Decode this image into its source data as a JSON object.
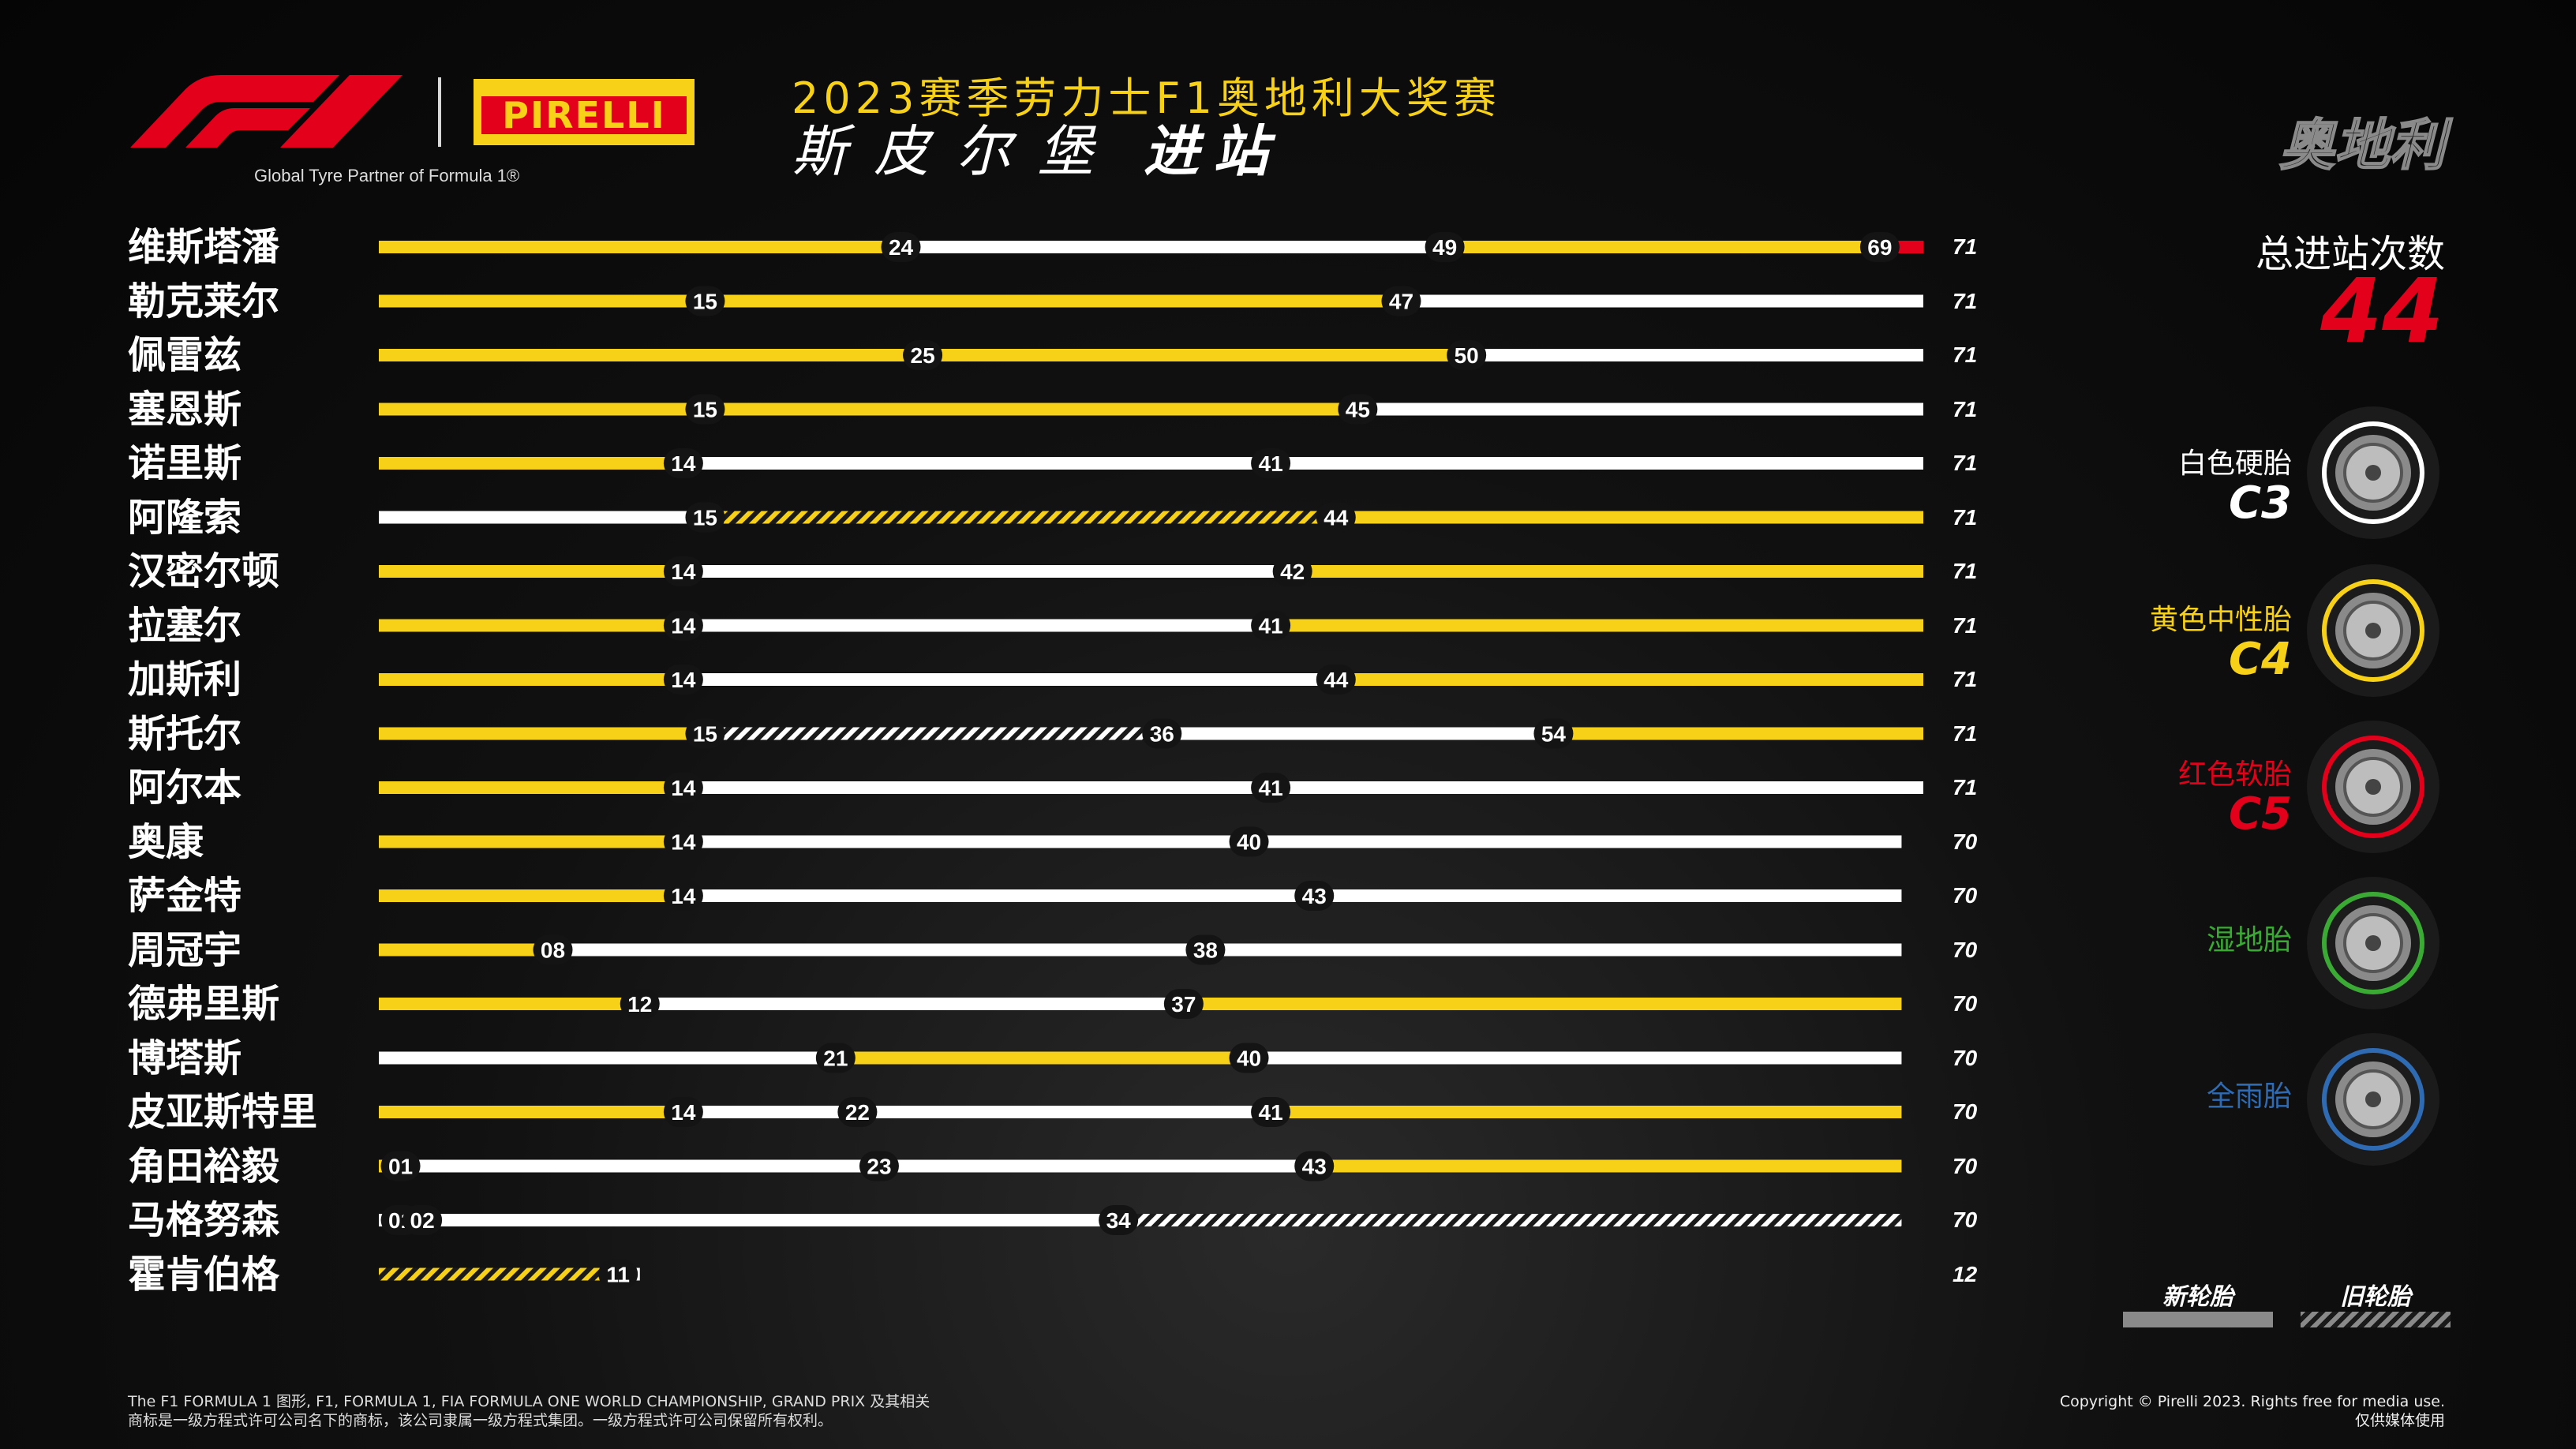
{
  "header": {
    "title_line1": "2023赛季劳力士F1奥地利大奖赛",
    "title_line2_a": "斯皮尔堡",
    "title_line2_b": "进站",
    "country": "奥地利",
    "partner_text": "Global Tyre Partner of Formula 1®",
    "pirelli_logo_text": "PIRELLI"
  },
  "summary": {
    "label": "总进站次数",
    "value": "44"
  },
  "legend": {
    "compounds": [
      {
        "name": "白色硬胎",
        "code": "C3",
        "color": "#ffffff"
      },
      {
        "name": "黄色中性胎",
        "code": "C4",
        "color": "#f7d117"
      },
      {
        "name": "红色软胎",
        "code": "C5",
        "color": "#e2001a"
      },
      {
        "name": "湿地胎",
        "code": "",
        "color": "#3aaa35"
      },
      {
        "name": "全雨胎",
        "code": "",
        "color": "#2f6bb3"
      }
    ],
    "new_label": "新轮胎",
    "used_label": "旧轮胎"
  },
  "footer": {
    "left_line1": "The F1 FORMULA 1 图形, F1, FORMULA 1, FIA FORMULA ONE WORLD CHAMPIONSHIP, GRAND PRIX 及其相关",
    "left_line2": "商标是一级方程式许可公司名下的商标，该公司隶属一级方程式集团。一级方程式许可公司保留所有权利。",
    "right_line1": "Copyright © Pirelli 2023. Rights free for media use.",
    "right_line2": "仅供媒体使用"
  },
  "chart_data": {
    "type": "bar",
    "x_range": [
      0,
      71
    ],
    "colors": {
      "hard": "#ffffff",
      "medium": "#f7d117",
      "soft": "#e2001a"
    },
    "drivers": [
      {
        "name": "维斯塔潘",
        "laps": 71,
        "stints": [
          {
            "tyre": "medium",
            "start": 0,
            "end": 24,
            "used": false
          },
          {
            "tyre": "hard",
            "start": 24,
            "end": 49,
            "used": false
          },
          {
            "tyre": "medium",
            "start": 49,
            "end": 69,
            "used": false
          },
          {
            "tyre": "soft",
            "start": 69,
            "end": 71,
            "used": false
          }
        ],
        "stops": [
          "24",
          "49",
          "69"
        ]
      },
      {
        "name": "勒克莱尔",
        "laps": 71,
        "stints": [
          {
            "tyre": "medium",
            "start": 0,
            "end": 15,
            "used": false
          },
          {
            "tyre": "medium",
            "start": 15,
            "end": 47,
            "used": false
          },
          {
            "tyre": "hard",
            "start": 47,
            "end": 71,
            "used": false
          }
        ],
        "stops": [
          "15",
          "47"
        ]
      },
      {
        "name": "佩雷兹",
        "laps": 71,
        "stints": [
          {
            "tyre": "medium",
            "start": 0,
            "end": 25,
            "used": false
          },
          {
            "tyre": "medium",
            "start": 25,
            "end": 50,
            "used": false
          },
          {
            "tyre": "hard",
            "start": 50,
            "end": 71,
            "used": false
          }
        ],
        "stops": [
          "25",
          "50"
        ]
      },
      {
        "name": "塞恩斯",
        "laps": 71,
        "stints": [
          {
            "tyre": "medium",
            "start": 0,
            "end": 15,
            "used": false
          },
          {
            "tyre": "medium",
            "start": 15,
            "end": 45,
            "used": false
          },
          {
            "tyre": "hard",
            "start": 45,
            "end": 71,
            "used": false
          }
        ],
        "stops": [
          "15",
          "45"
        ]
      },
      {
        "name": "诺里斯",
        "laps": 71,
        "stints": [
          {
            "tyre": "medium",
            "start": 0,
            "end": 14,
            "used": false
          },
          {
            "tyre": "hard",
            "start": 14,
            "end": 41,
            "used": false
          },
          {
            "tyre": "hard",
            "start": 41,
            "end": 71,
            "used": false
          }
        ],
        "stops": [
          "14",
          "41"
        ]
      },
      {
        "name": "阿隆索",
        "laps": 71,
        "stints": [
          {
            "tyre": "hard",
            "start": 0,
            "end": 15,
            "used": false
          },
          {
            "tyre": "medium",
            "start": 15,
            "end": 44,
            "used": true
          },
          {
            "tyre": "medium",
            "start": 44,
            "end": 71,
            "used": false
          }
        ],
        "stops": [
          "15",
          "44"
        ]
      },
      {
        "name": "汉密尔顿",
        "laps": 71,
        "stints": [
          {
            "tyre": "medium",
            "start": 0,
            "end": 14,
            "used": false
          },
          {
            "tyre": "hard",
            "start": 14,
            "end": 42,
            "used": false
          },
          {
            "tyre": "medium",
            "start": 42,
            "end": 71,
            "used": false
          }
        ],
        "stops": [
          "14",
          "42"
        ]
      },
      {
        "name": "拉塞尔",
        "laps": 71,
        "stints": [
          {
            "tyre": "medium",
            "start": 0,
            "end": 14,
            "used": false
          },
          {
            "tyre": "hard",
            "start": 14,
            "end": 41,
            "used": false
          },
          {
            "tyre": "medium",
            "start": 41,
            "end": 71,
            "used": false
          }
        ],
        "stops": [
          "14",
          "41"
        ]
      },
      {
        "name": "加斯利",
        "laps": 71,
        "stints": [
          {
            "tyre": "medium",
            "start": 0,
            "end": 14,
            "used": false
          },
          {
            "tyre": "hard",
            "start": 14,
            "end": 44,
            "used": false
          },
          {
            "tyre": "medium",
            "start": 44,
            "end": 71,
            "used": false
          }
        ],
        "stops": [
          "14",
          "44"
        ]
      },
      {
        "name": "斯托尔",
        "laps": 71,
        "stints": [
          {
            "tyre": "medium",
            "start": 0,
            "end": 15,
            "used": false
          },
          {
            "tyre": "hard",
            "start": 15,
            "end": 36,
            "used": true
          },
          {
            "tyre": "hard",
            "start": 36,
            "end": 54,
            "used": false
          },
          {
            "tyre": "medium",
            "start": 54,
            "end": 71,
            "used": false
          }
        ],
        "stops": [
          "15",
          "36",
          "54"
        ]
      },
      {
        "name": "阿尔本",
        "laps": 71,
        "stints": [
          {
            "tyre": "medium",
            "start": 0,
            "end": 14,
            "used": false
          },
          {
            "tyre": "hard",
            "start": 14,
            "end": 41,
            "used": false
          },
          {
            "tyre": "hard",
            "start": 41,
            "end": 71,
            "used": false
          }
        ],
        "stops": [
          "14",
          "41"
        ]
      },
      {
        "name": "奥康",
        "laps": 70,
        "stints": [
          {
            "tyre": "medium",
            "start": 0,
            "end": 14,
            "used": false
          },
          {
            "tyre": "hard",
            "start": 14,
            "end": 40,
            "used": false
          },
          {
            "tyre": "hard",
            "start": 40,
            "end": 70,
            "used": false
          }
        ],
        "stops": [
          "14",
          "40"
        ]
      },
      {
        "name": "萨金特",
        "laps": 70,
        "stints": [
          {
            "tyre": "medium",
            "start": 0,
            "end": 14,
            "used": false
          },
          {
            "tyre": "hard",
            "start": 14,
            "end": 43,
            "used": false
          },
          {
            "tyre": "hard",
            "start": 43,
            "end": 70,
            "used": false
          }
        ],
        "stops": [
          "14",
          "43"
        ]
      },
      {
        "name": "周冠宇",
        "laps": 70,
        "stints": [
          {
            "tyre": "medium",
            "start": 0,
            "end": 8,
            "used": false
          },
          {
            "tyre": "hard",
            "start": 8,
            "end": 38,
            "used": false
          },
          {
            "tyre": "hard",
            "start": 38,
            "end": 70,
            "used": false
          }
        ],
        "stops": [
          "08",
          "38"
        ]
      },
      {
        "name": "德弗里斯",
        "laps": 70,
        "stints": [
          {
            "tyre": "medium",
            "start": 0,
            "end": 12,
            "used": false
          },
          {
            "tyre": "hard",
            "start": 12,
            "end": 37,
            "used": false
          },
          {
            "tyre": "medium",
            "start": 37,
            "end": 70,
            "used": false
          }
        ],
        "stops": [
          "12",
          "37"
        ]
      },
      {
        "name": "博塔斯",
        "laps": 70,
        "stints": [
          {
            "tyre": "hard",
            "start": 0,
            "end": 21,
            "used": false
          },
          {
            "tyre": "medium",
            "start": 21,
            "end": 40,
            "used": false
          },
          {
            "tyre": "hard",
            "start": 40,
            "end": 70,
            "used": false
          }
        ],
        "stops": [
          "21",
          "40"
        ]
      },
      {
        "name": "皮亚斯特里",
        "laps": 70,
        "stints": [
          {
            "tyre": "medium",
            "start": 0,
            "end": 14,
            "used": false
          },
          {
            "tyre": "hard",
            "start": 14,
            "end": 22,
            "used": false
          },
          {
            "tyre": "hard",
            "start": 22,
            "end": 41,
            "used": false
          },
          {
            "tyre": "medium",
            "start": 41,
            "end": 70,
            "used": false
          }
        ],
        "stops": [
          "14",
          "22",
          "41"
        ]
      },
      {
        "name": "角田裕毅",
        "laps": 70,
        "stints": [
          {
            "tyre": "medium",
            "start": 0,
            "end": 1,
            "used": false
          },
          {
            "tyre": "hard",
            "start": 1,
            "end": 23,
            "used": false
          },
          {
            "tyre": "hard",
            "start": 23,
            "end": 43,
            "used": false
          },
          {
            "tyre": "medium",
            "start": 43,
            "end": 70,
            "used": false
          }
        ],
        "stops": [
          "01",
          "23",
          "43"
        ]
      },
      {
        "name": "马格努森",
        "laps": 70,
        "stints": [
          {
            "tyre": "hard",
            "start": 0,
            "end": 1,
            "used": false
          },
          {
            "tyre": "medium",
            "start": 1,
            "end": 2,
            "used": false
          },
          {
            "tyre": "hard",
            "start": 2,
            "end": 34,
            "used": false
          },
          {
            "tyre": "hard",
            "start": 34,
            "end": 70,
            "used": true
          }
        ],
        "stops": [
          "01",
          "02",
          "34"
        ]
      },
      {
        "name": "霍肯伯格",
        "laps": 12,
        "stints": [
          {
            "tyre": "medium",
            "start": 0,
            "end": 11,
            "used": true
          },
          {
            "tyre": "hard",
            "start": 11,
            "end": 12,
            "used": false
          }
        ],
        "stops": [
          "11"
        ]
      }
    ]
  }
}
